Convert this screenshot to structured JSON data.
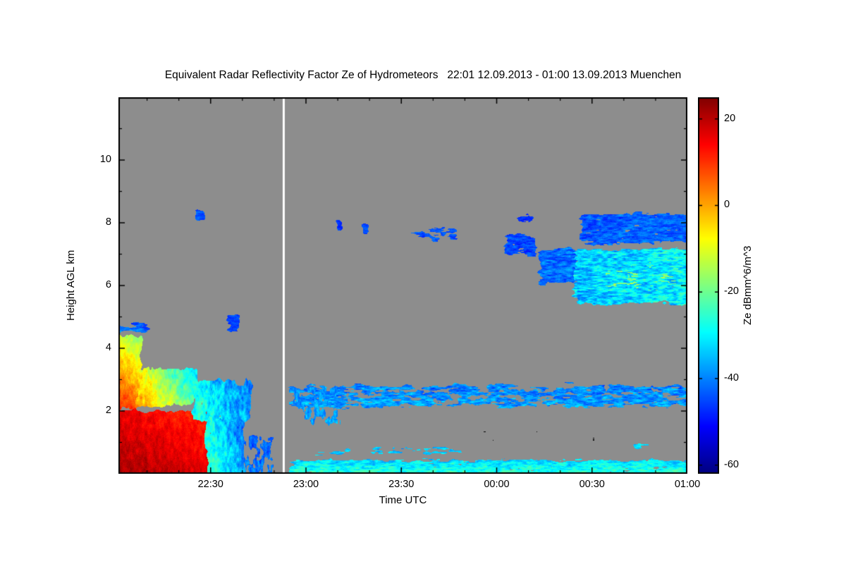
{
  "chart_data": {
    "type": "heatmap",
    "title": "Equivalent Radar Reflectivity Factor Ze of Hydrometeors   22:01 12.09.2013 - 01:00 13.09.2013 Muenchen",
    "xlabel": "Time UTC",
    "ylabel": "Height AGL km",
    "colorbar_label": "Ze dBmm^6/m^3",
    "x_total_minutes": 179,
    "xticks": [
      {
        "minute": 29,
        "label": "22:30"
      },
      {
        "minute": 59,
        "label": "23:00"
      },
      {
        "minute": 89,
        "label": "23:30"
      },
      {
        "minute": 119,
        "label": "00:00"
      },
      {
        "minute": 149,
        "label": "00:30"
      },
      {
        "minute": 179,
        "label": "01:00"
      }
    ],
    "x_minor_step_minutes": 10,
    "ylim": [
      0,
      12
    ],
    "yticks": [
      2,
      4,
      6,
      8,
      10
    ],
    "y_minor_step_km": 1,
    "colorbar": {
      "vmin": -62,
      "vmax": 25,
      "ticks": [
        20,
        0,
        -20,
        -40,
        -60
      ]
    },
    "marker_line": {
      "minute": 52,
      "color": "#ffffff"
    },
    "colors": {
      "no_data": "#8d8d8d",
      "frame": "#000000",
      "background": "#ffffff",
      "text": "#000000"
    },
    "echo_regions": [
      {
        "name": "surface-rain-core",
        "t0": 0,
        "t1": 31,
        "h0": 0,
        "h1": 2.15,
        "db": 22,
        "grad_t": -6,
        "grad_h": -7,
        "jitter": 4,
        "cover": 1.0,
        "scale": 6,
        "streak": "v"
      },
      {
        "name": "rain-column-left",
        "t0": 0,
        "t1": 8.5,
        "h0": 1.9,
        "h1": 4.55,
        "db": 14,
        "grad_t": -8,
        "grad_h": -27,
        "jitter": 5,
        "cover": 1.0,
        "scale": 5,
        "streak": "v"
      },
      {
        "name": "rain-top-fringe",
        "t0": 0,
        "t1": 11,
        "h0": 4.4,
        "h1": 4.95,
        "db": -36,
        "grad_t": -6,
        "grad_h": -8,
        "jitter": 7,
        "cover": 0.6,
        "scale": 4,
        "streak": "h"
      },
      {
        "name": "melting-band",
        "t0": 4,
        "t1": 26,
        "h0": 2.0,
        "h1": 3.5,
        "db": 6,
        "grad_t": -30,
        "grad_h": -12,
        "jitter": 7,
        "cover": 0.95,
        "scale": 5,
        "streak": "v"
      },
      {
        "name": "decay-region",
        "t0": 22,
        "t1": 43,
        "h0": 1.5,
        "h1": 3.15,
        "db": -24,
        "grad_t": -14,
        "grad_h": -5,
        "jitter": 9,
        "cover": 0.85,
        "scale": 5,
        "streak": "v"
      },
      {
        "name": "low-cyan-tail",
        "t0": 26,
        "t1": 41,
        "h0": 0,
        "h1": 1.9,
        "db": -20,
        "grad_t": -20,
        "grad_h": -5,
        "jitter": 8,
        "cover": 0.9,
        "scale": 5,
        "streak": "v"
      },
      {
        "name": "low-blue-columns",
        "t0": 38,
        "t1": 50,
        "h0": 0,
        "h1": 1.4,
        "db": -40,
        "grad_t": 0,
        "grad_h": -5,
        "jitter": 7,
        "cover": 0.5,
        "scale": 4,
        "streak": "v"
      },
      {
        "name": "cloud-patch-8km",
        "t0": 23.5,
        "t1": 28,
        "h0": 7.95,
        "h1": 8.5,
        "db": -44,
        "grad_t": 0,
        "grad_h": 0,
        "jitter": 5,
        "cover": 0.95,
        "scale": 5,
        "streak": "h"
      },
      {
        "name": "cloud-patch-5km",
        "t0": 33,
        "t1": 39.5,
        "h0": 4.35,
        "h1": 5.2,
        "db": -46,
        "grad_t": 0,
        "grad_h": 0,
        "jitter": 5,
        "cover": 0.8,
        "scale": 5,
        "streak": "h"
      },
      {
        "name": "midlevel-layer",
        "t0": 52,
        "t1": 179,
        "h0": 1.95,
        "h1": 3.0,
        "db": -36,
        "grad_t": 0,
        "grad_h": -5,
        "jitter": 9,
        "cover": 0.62,
        "scale": 4,
        "streak": "h"
      },
      {
        "name": "midlevel-thick-chunk",
        "t0": 53,
        "t1": 71,
        "h0": 1.4,
        "h1": 2.95,
        "db": -38,
        "grad_t": 0,
        "grad_h": 0,
        "jitter": 8,
        "cover": 0.5,
        "scale": 4,
        "streak": "v"
      },
      {
        "name": "surface-layer",
        "t0": 52,
        "t1": 179,
        "h0": 0.03,
        "h1": 0.55,
        "db": -26,
        "grad_t": 0,
        "grad_h": -8,
        "jitter": 9,
        "cover": 0.85,
        "scale": 4,
        "streak": "h"
      },
      {
        "name": "surface-layer-bumps",
        "t0": 60,
        "t1": 110,
        "h0": 0.5,
        "h1": 0.95,
        "db": -34,
        "grad_t": 0,
        "grad_h": 0,
        "jitter": 8,
        "cover": 0.4,
        "scale": 4,
        "streak": "h"
      },
      {
        "name": "surface-bits-right",
        "t0": 150,
        "t1": 172,
        "h0": 0.6,
        "h1": 1.2,
        "db": -32,
        "grad_t": 0,
        "grad_h": 0,
        "jitter": 8,
        "cover": 0.35,
        "scale": 4,
        "streak": "h"
      },
      {
        "name": "cirrus-bit-1",
        "t0": 68,
        "t1": 71,
        "h0": 7.6,
        "h1": 8.2,
        "db": -47,
        "grad_t": 0,
        "grad_h": 0,
        "jitter": 4,
        "cover": 0.9,
        "scale": 5,
        "streak": "h"
      },
      {
        "name": "cirrus-bit-2",
        "t0": 76,
        "t1": 79.5,
        "h0": 7.5,
        "h1": 8.1,
        "db": -44,
        "grad_t": 0,
        "grad_h": 0,
        "jitter": 5,
        "cover": 0.9,
        "scale": 5,
        "streak": "h"
      },
      {
        "name": "cirrus-band",
        "t0": 91,
        "t1": 108,
        "h0": 7.3,
        "h1": 8.0,
        "db": -44,
        "grad_t": 0,
        "grad_h": 0,
        "jitter": 6,
        "cover": 0.6,
        "scale": 4,
        "streak": "h"
      },
      {
        "name": "cloud-7km",
        "t0": 120,
        "t1": 133,
        "h0": 6.8,
        "h1": 7.8,
        "db": -45,
        "grad_t": 0,
        "grad_h": 0,
        "jitter": 6,
        "cover": 0.78,
        "scale": 4,
        "streak": "h"
      },
      {
        "name": "cloud-8km-bits",
        "t0": 124,
        "t1": 132,
        "h0": 7.9,
        "h1": 8.35,
        "db": -47,
        "grad_t": 0,
        "grad_h": 0,
        "jitter": 4,
        "cover": 0.7,
        "scale": 4,
        "streak": "h"
      },
      {
        "name": "anvil-leading-edge",
        "t0": 131,
        "t1": 146,
        "h0": 5.9,
        "h1": 7.35,
        "db": -42,
        "grad_t": 0,
        "grad_h": 0,
        "jitter": 8,
        "cover": 0.85,
        "scale": 4,
        "streak": "h"
      },
      {
        "name": "anvil-main",
        "t0": 142,
        "t1": 179,
        "h0": 5.25,
        "h1": 7.3,
        "db": -34,
        "grad_t": 4,
        "grad_h": 0,
        "jitter": 12,
        "cover": 0.95,
        "scale": 4,
        "streak": "h"
      },
      {
        "name": "anvil-top",
        "t0": 144,
        "t1": 179,
        "h0": 7.2,
        "h1": 8.45,
        "db": -44,
        "grad_t": 2,
        "grad_h": 0,
        "jitter": 7,
        "cover": 0.85,
        "scale": 4,
        "streak": "h"
      },
      {
        "name": "anvil-bright-streaks",
        "t0": 150,
        "t1": 178,
        "h0": 5.7,
        "h1": 6.9,
        "db": -18,
        "grad_t": 0,
        "grad_h": 0,
        "jitter": 8,
        "cover": 0.3,
        "scale": 3,
        "streak": "h"
      },
      {
        "name": "clutter-specks-1",
        "t0": 112,
        "t1": 121,
        "h0": 0.95,
        "h1": 1.6,
        "cover": 0.13,
        "scale": 3,
        "color": "#000000"
      },
      {
        "name": "clutter-specks-2",
        "t0": 128,
        "t1": 135,
        "h0": 1.05,
        "h1": 1.45,
        "cover": 0.13,
        "scale": 3,
        "color": "#000000"
      },
      {
        "name": "clutter-specks-3",
        "t0": 135,
        "t1": 142,
        "h0": 1.65,
        "h1": 2.0,
        "cover": 0.12,
        "scale": 3,
        "color": "#000000"
      },
      {
        "name": "clutter-specks-4",
        "t0": 143,
        "t1": 157,
        "h0": 0.85,
        "h1": 1.3,
        "cover": 0.13,
        "scale": 3,
        "color": "#000000"
      },
      {
        "name": "clutter-specks-5",
        "t0": 150,
        "t1": 172,
        "h0": 0.15,
        "h1": 0.5,
        "cover": 0.1,
        "scale": 3,
        "color": "#000000"
      }
    ]
  }
}
